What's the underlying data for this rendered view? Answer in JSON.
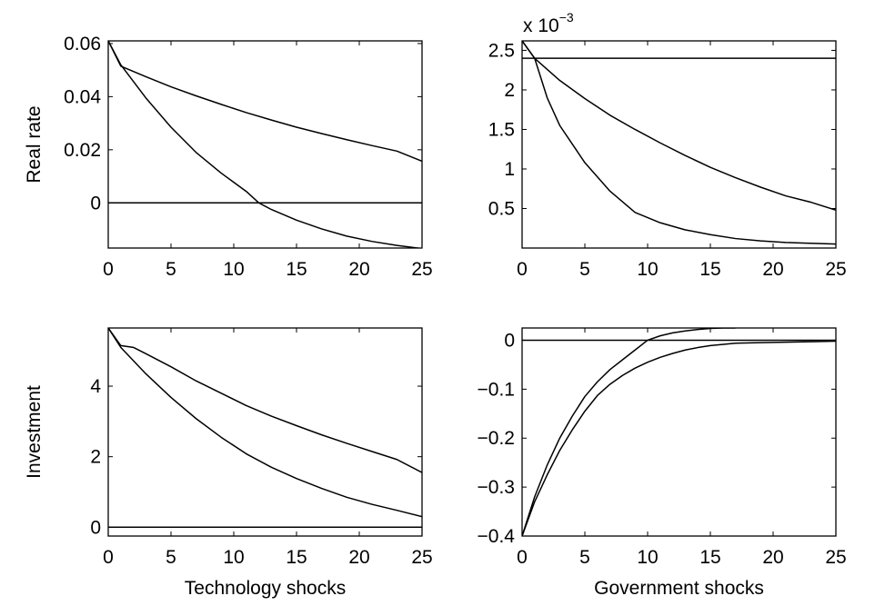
{
  "figure": {
    "background": "#ffffff",
    "line_color": "#000000"
  },
  "chart_data": [
    {
      "id": "real-rate-technology",
      "type": "line",
      "title": "",
      "xlabel": "",
      "ylabel": "Real rate",
      "xlim": [
        0,
        25
      ],
      "ylim": [
        -0.017,
        0.061
      ],
      "xticks": [
        0,
        5,
        10,
        15,
        20,
        25
      ],
      "xtick_labels": [
        "0",
        "5",
        "10",
        "15",
        "20",
        "25"
      ],
      "yticks": [
        0,
        0.02,
        0.04,
        0.06
      ],
      "ytick_labels": [
        "0",
        "0.02",
        "0.04",
        "0.06"
      ],
      "exponent_label": null,
      "grid": false,
      "series": [
        {
          "x": [
            0,
            1,
            3,
            5,
            7,
            9,
            11,
            13,
            15,
            17,
            19,
            21,
            23,
            25
          ],
          "y": [
            0.061,
            0.0515,
            0.0475,
            0.0437,
            0.0403,
            0.0371,
            0.034,
            0.0312,
            0.0285,
            0.0261,
            0.0238,
            0.0216,
            0.0195,
            0.0157
          ]
        },
        {
          "x": [
            0,
            1,
            3,
            5,
            7,
            9,
            11,
            12,
            13,
            15,
            17,
            19,
            21,
            23,
            25
          ],
          "y": [
            0.061,
            0.052,
            0.0395,
            0.0285,
            0.019,
            0.0112,
            0.0043,
            0.0,
            -0.0025,
            -0.0065,
            -0.0098,
            -0.0125,
            -0.0145,
            -0.016,
            -0.0172
          ]
        },
        {
          "x": [
            0,
            25
          ],
          "y": [
            0,
            0
          ]
        }
      ]
    },
    {
      "id": "real-rate-government",
      "type": "line",
      "title": "",
      "xlabel": "",
      "ylabel": "",
      "xlim": [
        0,
        25
      ],
      "ylim": [
        0.0,
        0.00262
      ],
      "xticks": [
        0,
        5,
        10,
        15,
        20,
        25
      ],
      "xtick_labels": [
        "0",
        "5",
        "10",
        "15",
        "20",
        "25"
      ],
      "yticks": [
        0.0005,
        0.001,
        0.0015,
        0.002,
        0.0025
      ],
      "ytick_labels": [
        "0.5",
        "1",
        "1.5",
        "2",
        "2.5"
      ],
      "exponent_label": {
        "base": "x 10",
        "exponent": "−3"
      },
      "grid": false,
      "series": [
        {
          "x": [
            0,
            1,
            3,
            5,
            7,
            9,
            11,
            13,
            15,
            17,
            19,
            21,
            23,
            25
          ],
          "y": [
            0.00262,
            0.0024,
            0.00212,
            0.00189,
            0.00168,
            0.0015,
            0.00133,
            0.00117,
            0.00102,
            0.00089,
            0.00077,
            0.00066,
            0.00058,
            0.00048
          ]
        },
        {
          "x": [
            0,
            1,
            2,
            3,
            5,
            7,
            9,
            11,
            13,
            15,
            17,
            19,
            21,
            23,
            25
          ],
          "y": [
            0.00262,
            0.0024,
            0.0019,
            0.00155,
            0.00108,
            0.00072,
            0.00045,
            0.00032,
            0.00023,
            0.00017,
            0.00012,
            9e-05,
            7e-05,
            6e-05,
            5e-05
          ]
        },
        {
          "x": [
            0,
            25
          ],
          "y": [
            0.0024,
            0.0024
          ]
        }
      ]
    },
    {
      "id": "investment-technology",
      "type": "line",
      "title": "",
      "xlabel": "Technology shocks",
      "ylabel": "Investment",
      "xlim": [
        0,
        25
      ],
      "ylim": [
        -0.25,
        5.65
      ],
      "xticks": [
        0,
        5,
        10,
        15,
        20,
        25
      ],
      "xtick_labels": [
        "0",
        "5",
        "10",
        "15",
        "20",
        "25"
      ],
      "yticks": [
        0,
        2,
        4
      ],
      "ytick_labels": [
        "0",
        "2",
        "4"
      ],
      "exponent_label": null,
      "grid": false,
      "series": [
        {
          "x": [
            0,
            1,
            2,
            3,
            5,
            7,
            9,
            11,
            13,
            15,
            17,
            19,
            21,
            23,
            25
          ],
          "y": [
            5.65,
            5.15,
            5.1,
            4.92,
            4.55,
            4.15,
            3.8,
            3.45,
            3.15,
            2.88,
            2.62,
            2.38,
            2.15,
            1.92,
            1.55
          ]
        },
        {
          "x": [
            0,
            1,
            3,
            5,
            7,
            9,
            11,
            13,
            15,
            17,
            19,
            21,
            23,
            25
          ],
          "y": [
            5.65,
            5.1,
            4.35,
            3.68,
            3.08,
            2.55,
            2.08,
            1.7,
            1.38,
            1.1,
            0.85,
            0.65,
            0.48,
            0.3
          ]
        },
        {
          "x": [
            0,
            25
          ],
          "y": [
            0,
            0
          ]
        }
      ]
    },
    {
      "id": "investment-government",
      "type": "line",
      "title": "",
      "xlabel": "Government shocks",
      "ylabel": "",
      "xlim": [
        0,
        25
      ],
      "ylim": [
        -0.4,
        0.025
      ],
      "xticks": [
        0,
        5,
        10,
        15,
        20,
        25
      ],
      "xtick_labels": [
        "0",
        "5",
        "10",
        "15",
        "20",
        "25"
      ],
      "yticks": [
        -0.4,
        -0.3,
        -0.2,
        -0.1,
        0
      ],
      "ytick_labels": [
        "−0.4",
        "−0.3",
        "−0.2",
        "−0.1",
        "0"
      ],
      "exponent_label": null,
      "grid": false,
      "series": [
        {
          "x": [
            0,
            1,
            2,
            3,
            4,
            5,
            6,
            7,
            8,
            9,
            10,
            11,
            12,
            13,
            14,
            15,
            16,
            17
          ],
          "y": [
            -0.4,
            -0.32,
            -0.255,
            -0.2,
            -0.155,
            -0.115,
            -0.085,
            -0.06,
            -0.04,
            -0.02,
            0.0,
            0.009,
            0.015,
            0.019,
            0.022,
            0.024,
            0.025,
            0.025
          ]
        },
        {
          "x": [
            0,
            1,
            2,
            3,
            4,
            5,
            6,
            7,
            8,
            9,
            10,
            11,
            12,
            13,
            14,
            15,
            17,
            19,
            21,
            23,
            25
          ],
          "y": [
            -0.4,
            -0.33,
            -0.275,
            -0.225,
            -0.183,
            -0.145,
            -0.113,
            -0.09,
            -0.072,
            -0.057,
            -0.045,
            -0.035,
            -0.027,
            -0.02,
            -0.015,
            -0.011,
            -0.006,
            -0.005,
            -0.004,
            -0.003,
            -0.002
          ]
        },
        {
          "x": [
            0,
            25
          ],
          "y": [
            0,
            0
          ]
        }
      ]
    }
  ]
}
